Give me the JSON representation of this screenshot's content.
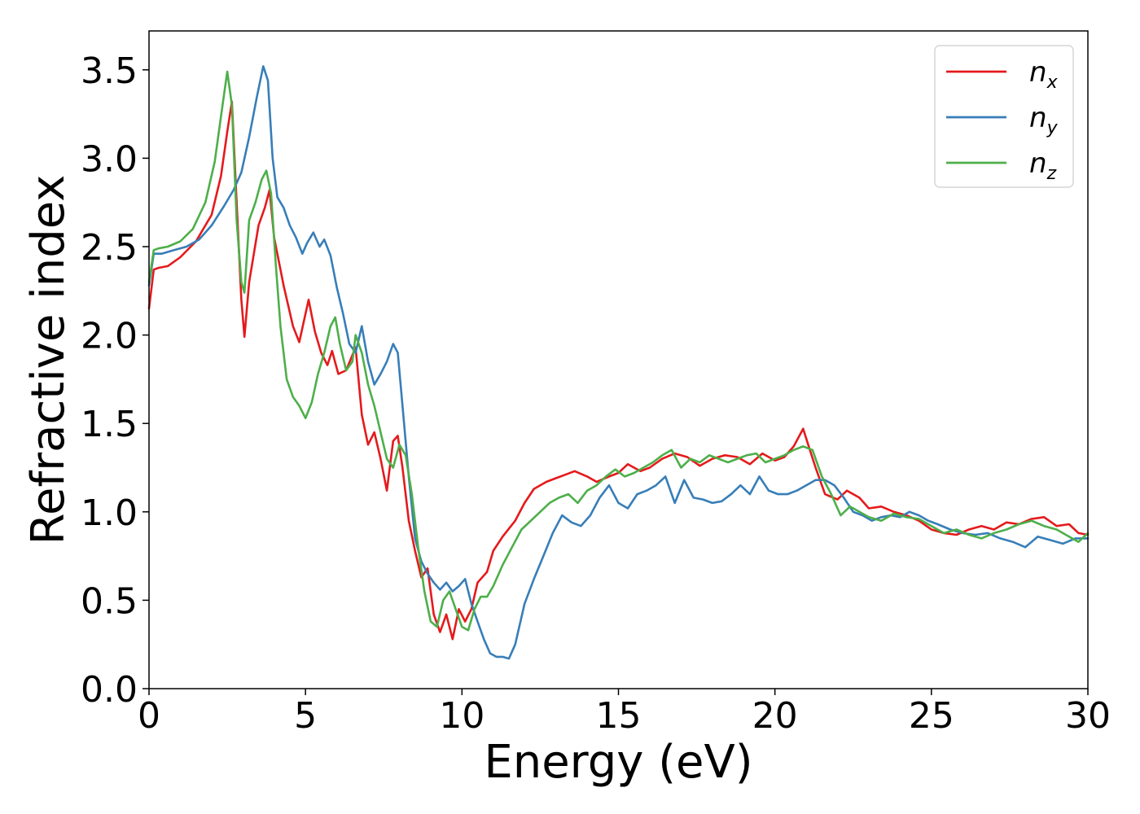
{
  "chart_data": {
    "type": "line",
    "xlabel": "Energy (eV)",
    "ylabel": "Refractive index",
    "xlim": [
      0,
      30
    ],
    "ylim": [
      0,
      3.72
    ],
    "xticks": [
      0,
      5,
      10,
      15,
      20,
      25,
      30
    ],
    "xtick_labels": [
      "0",
      "5",
      "10",
      "15",
      "20",
      "25",
      "30"
    ],
    "yticks": [
      0,
      0.5,
      1.0,
      1.5,
      2.0,
      2.5,
      3.0,
      3.5
    ],
    "ytick_labels": [
      "0.0",
      "0.5",
      "1.0",
      "1.5",
      "2.0",
      "2.5",
      "3.0",
      "3.5"
    ],
    "grid": false,
    "legend_position": "top-right",
    "series": [
      {
        "name": "n_x",
        "legend_base": "n",
        "legend_sub": "x",
        "color": "#e41a1c",
        "x": [
          0,
          0.15,
          0.3,
          0.6,
          1.0,
          1.5,
          2.0,
          2.3,
          2.5,
          2.65,
          2.8,
          2.95,
          3.05,
          3.2,
          3.5,
          3.7,
          3.85,
          4.0,
          4.3,
          4.6,
          4.8,
          5.1,
          5.3,
          5.5,
          5.7,
          5.85,
          6.05,
          6.3,
          6.6,
          6.8,
          7.0,
          7.2,
          7.4,
          7.6,
          7.8,
          7.95,
          8.1,
          8.3,
          8.5,
          8.7,
          8.9,
          9.1,
          9.3,
          9.5,
          9.7,
          9.9,
          10.1,
          10.3,
          10.5,
          10.8,
          11.0,
          11.3,
          11.7,
          12.0,
          12.3,
          12.7,
          13.0,
          13.3,
          13.6,
          14.0,
          14.3,
          14.7,
          15.0,
          15.3,
          15.7,
          16.0,
          16.4,
          16.8,
          17.2,
          17.6,
          18.0,
          18.4,
          18.8,
          19.2,
          19.6,
          20.0,
          20.3,
          20.6,
          20.9,
          21.1,
          21.3,
          21.6,
          22.0,
          22.3,
          22.7,
          23.0,
          23.4,
          23.8,
          24.2,
          24.6,
          25.0,
          25.4,
          25.8,
          26.2,
          26.6,
          27.0,
          27.4,
          27.8,
          28.2,
          28.6,
          29.0,
          29.4,
          29.7,
          30.0
        ],
        "values": [
          2.15,
          2.37,
          2.38,
          2.39,
          2.44,
          2.53,
          2.68,
          2.9,
          3.15,
          3.32,
          2.75,
          2.2,
          1.99,
          2.3,
          2.62,
          2.72,
          2.82,
          2.55,
          2.28,
          2.05,
          1.96,
          2.2,
          2.02,
          1.9,
          1.83,
          1.91,
          1.78,
          1.8,
          1.93,
          1.55,
          1.38,
          1.45,
          1.3,
          1.12,
          1.4,
          1.43,
          1.25,
          0.95,
          0.78,
          0.63,
          0.68,
          0.42,
          0.32,
          0.42,
          0.28,
          0.45,
          0.38,
          0.45,
          0.6,
          0.66,
          0.78,
          0.86,
          0.95,
          1.05,
          1.13,
          1.17,
          1.19,
          1.21,
          1.23,
          1.2,
          1.17,
          1.2,
          1.22,
          1.27,
          1.23,
          1.25,
          1.3,
          1.33,
          1.31,
          1.26,
          1.3,
          1.32,
          1.31,
          1.27,
          1.33,
          1.29,
          1.31,
          1.37,
          1.47,
          1.36,
          1.25,
          1.1,
          1.07,
          1.12,
          1.08,
          1.02,
          1.03,
          1.0,
          0.98,
          0.95,
          0.9,
          0.88,
          0.87,
          0.9,
          0.92,
          0.9,
          0.94,
          0.93,
          0.96,
          0.97,
          0.92,
          0.93,
          0.88,
          0.87
        ]
      },
      {
        "name": "n_y",
        "legend_base": "n",
        "legend_sub": "y",
        "color": "#377eb8",
        "x": [
          0,
          0.15,
          0.4,
          0.8,
          1.2,
          1.6,
          2.0,
          2.4,
          2.7,
          2.95,
          3.2,
          3.45,
          3.65,
          3.8,
          3.95,
          4.1,
          4.3,
          4.5,
          4.7,
          4.9,
          5.05,
          5.25,
          5.45,
          5.6,
          5.8,
          6.0,
          6.2,
          6.4,
          6.6,
          6.8,
          7.0,
          7.2,
          7.4,
          7.6,
          7.8,
          7.95,
          8.1,
          8.3,
          8.5,
          8.7,
          8.9,
          9.1,
          9.3,
          9.5,
          9.7,
          9.9,
          10.1,
          10.3,
          10.5,
          10.7,
          10.9,
          11.1,
          11.3,
          11.5,
          11.7,
          12.0,
          12.3,
          12.6,
          12.9,
          13.2,
          13.5,
          13.8,
          14.1,
          14.4,
          14.7,
          15.0,
          15.3,
          15.6,
          15.9,
          16.2,
          16.5,
          16.8,
          17.1,
          17.4,
          17.7,
          18.0,
          18.3,
          18.6,
          18.9,
          19.2,
          19.5,
          19.8,
          20.1,
          20.4,
          20.7,
          21.0,
          21.3,
          21.6,
          21.9,
          22.2,
          22.5,
          22.8,
          23.1,
          23.4,
          23.7,
          24.0,
          24.3,
          24.6,
          24.9,
          25.2,
          25.6,
          26.0,
          26.4,
          26.8,
          27.2,
          27.6,
          28.0,
          28.4,
          28.8,
          29.2,
          29.6,
          30.0
        ],
        "values": [
          2.28,
          2.46,
          2.46,
          2.48,
          2.5,
          2.54,
          2.62,
          2.73,
          2.82,
          2.92,
          3.12,
          3.35,
          3.52,
          3.44,
          3.0,
          2.78,
          2.72,
          2.62,
          2.55,
          2.46,
          2.52,
          2.58,
          2.5,
          2.54,
          2.45,
          2.27,
          2.12,
          1.95,
          1.9,
          2.05,
          1.85,
          1.72,
          1.78,
          1.85,
          1.95,
          1.9,
          1.6,
          1.2,
          0.85,
          0.72,
          0.65,
          0.6,
          0.56,
          0.6,
          0.55,
          0.58,
          0.62,
          0.48,
          0.38,
          0.28,
          0.2,
          0.18,
          0.18,
          0.17,
          0.25,
          0.48,
          0.62,
          0.75,
          0.88,
          0.98,
          0.94,
          0.92,
          0.98,
          1.08,
          1.15,
          1.05,
          1.02,
          1.1,
          1.12,
          1.15,
          1.2,
          1.05,
          1.18,
          1.08,
          1.07,
          1.05,
          1.06,
          1.1,
          1.15,
          1.1,
          1.2,
          1.12,
          1.1,
          1.1,
          1.12,
          1.15,
          1.18,
          1.18,
          1.15,
          1.08,
          1.0,
          0.98,
          0.95,
          0.97,
          0.98,
          0.97,
          1.0,
          0.98,
          0.95,
          0.93,
          0.9,
          0.88,
          0.87,
          0.88,
          0.85,
          0.83,
          0.8,
          0.86,
          0.84,
          0.82,
          0.85,
          0.85
        ]
      },
      {
        "name": "n_z",
        "legend_base": "n",
        "legend_sub": "z",
        "color": "#4daf4a",
        "x": [
          0,
          0.15,
          0.3,
          0.6,
          1.0,
          1.4,
          1.8,
          2.1,
          2.35,
          2.5,
          2.65,
          2.8,
          2.95,
          3.05,
          3.2,
          3.4,
          3.6,
          3.75,
          3.9,
          4.05,
          4.2,
          4.4,
          4.6,
          4.8,
          5.0,
          5.2,
          5.4,
          5.6,
          5.8,
          5.95,
          6.1,
          6.3,
          6.5,
          6.6,
          6.8,
          7.0,
          7.2,
          7.4,
          7.6,
          7.8,
          8.0,
          8.2,
          8.4,
          8.6,
          8.8,
          9.0,
          9.2,
          9.4,
          9.6,
          9.8,
          10.0,
          10.2,
          10.4,
          10.6,
          10.8,
          11.0,
          11.3,
          11.6,
          11.9,
          12.2,
          12.5,
          12.8,
          13.1,
          13.4,
          13.7,
          14.0,
          14.3,
          14.6,
          14.9,
          15.2,
          15.5,
          15.8,
          16.1,
          16.4,
          16.7,
          17.0,
          17.3,
          17.6,
          17.9,
          18.2,
          18.5,
          18.8,
          19.1,
          19.4,
          19.7,
          20.0,
          20.3,
          20.6,
          20.9,
          21.2,
          21.5,
          21.8,
          22.1,
          22.4,
          22.7,
          23.0,
          23.4,
          23.8,
          24.2,
          24.6,
          25.0,
          25.4,
          25.8,
          26.2,
          26.6,
          27.0,
          27.4,
          27.8,
          28.2,
          28.6,
          29.0,
          29.4,
          29.7,
          30.0
        ],
        "values": [
          2.3,
          2.48,
          2.49,
          2.5,
          2.53,
          2.6,
          2.75,
          2.98,
          3.3,
          3.49,
          3.3,
          2.65,
          2.3,
          2.24,
          2.65,
          2.75,
          2.88,
          2.93,
          2.8,
          2.4,
          2.05,
          1.75,
          1.65,
          1.6,
          1.53,
          1.62,
          1.78,
          1.9,
          2.05,
          2.1,
          1.95,
          1.8,
          1.85,
          2.0,
          1.9,
          1.72,
          1.6,
          1.45,
          1.3,
          1.25,
          1.38,
          1.32,
          1.1,
          0.8,
          0.55,
          0.38,
          0.35,
          0.5,
          0.55,
          0.45,
          0.35,
          0.33,
          0.45,
          0.52,
          0.52,
          0.58,
          0.7,
          0.8,
          0.9,
          0.95,
          1.0,
          1.05,
          1.08,
          1.1,
          1.05,
          1.12,
          1.15,
          1.2,
          1.24,
          1.2,
          1.22,
          1.25,
          1.28,
          1.32,
          1.35,
          1.25,
          1.3,
          1.28,
          1.32,
          1.3,
          1.28,
          1.3,
          1.32,
          1.33,
          1.28,
          1.3,
          1.32,
          1.35,
          1.37,
          1.35,
          1.2,
          1.1,
          0.98,
          1.03,
          1.0,
          0.97,
          0.95,
          0.99,
          0.97,
          0.96,
          0.92,
          0.88,
          0.9,
          0.87,
          0.85,
          0.88,
          0.9,
          0.93,
          0.95,
          0.92,
          0.9,
          0.86,
          0.83,
          0.88
        ]
      }
    ]
  }
}
